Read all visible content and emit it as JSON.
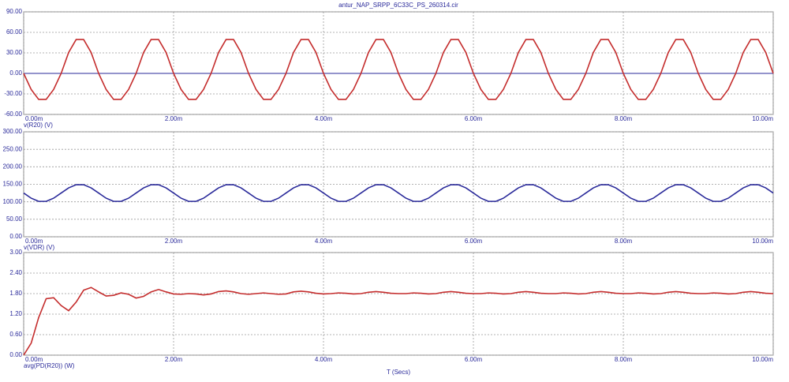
{
  "chart_data": [
    {
      "type": "line",
      "title": "antur_NAP_SRPP_6C33C_PS_260314.cir",
      "x": [
        0,
        0.0001,
        0.0002,
        0.0003,
        0.0004,
        0.0005,
        0.0006,
        0.0007,
        0.0008,
        0.0009,
        0.001,
        0.0011,
        0.0012,
        0.0013,
        0.0014,
        0.0015,
        0.0016,
        0.0017,
        0.0018,
        0.0019,
        0.002,
        0.0021,
        0.0022,
        0.0023,
        0.0024,
        0.0025,
        0.0026,
        0.0027,
        0.0028,
        0.0029,
        0.003,
        0.0031,
        0.0032,
        0.0033,
        0.0034,
        0.0035,
        0.0036,
        0.0037,
        0.0038,
        0.0039,
        0.004,
        0.0041,
        0.0042,
        0.0043,
        0.0044,
        0.0045,
        0.0046,
        0.0047,
        0.0048,
        0.0049,
        0.005,
        0.0051,
        0.0052,
        0.0053,
        0.0054,
        0.0055,
        0.0056,
        0.0057,
        0.0058,
        0.0059,
        0.006,
        0.0061,
        0.0062,
        0.0063,
        0.0064,
        0.0065,
        0.0066,
        0.0067,
        0.0068,
        0.0069,
        0.007,
        0.0071,
        0.0072,
        0.0073,
        0.0074,
        0.0075,
        0.0076,
        0.0077,
        0.0078,
        0.0079,
        0.008,
        0.0081,
        0.0082,
        0.0083,
        0.0084,
        0.0085,
        0.0086,
        0.0087,
        0.0088,
        0.0089,
        0.009,
        0.0091,
        0.0092,
        0.0093,
        0.0094,
        0.0095,
        0.0096,
        0.0097,
        0.0098,
        0.0099,
        0.01
      ],
      "series": [
        {
          "name": "v(R20) (V)",
          "color": "#c42c2c",
          "values": [
            0,
            -23.5,
            -38,
            -38,
            -23.5,
            0,
            30.6,
            49.5,
            49.5,
            30.6,
            0,
            -23.5,
            -38,
            -38,
            -23.5,
            0,
            30.6,
            49.5,
            49.5,
            30.6,
            0,
            -23.5,
            -38,
            -38,
            -23.5,
            0,
            30.6,
            49.5,
            49.5,
            30.6,
            0,
            -23.5,
            -38,
            -38,
            -23.5,
            0,
            30.6,
            49.5,
            49.5,
            30.6,
            0,
            -23.5,
            -38,
            -38,
            -23.5,
            0,
            30.6,
            49.5,
            49.5,
            30.6,
            0,
            -23.5,
            -38,
            -38,
            -23.5,
            0,
            30.6,
            49.5,
            49.5,
            30.6,
            0,
            -23.5,
            -38,
            -38,
            -23.5,
            0,
            30.6,
            49.5,
            49.5,
            30.6,
            0,
            -23.5,
            -38,
            -38,
            -23.5,
            0,
            30.6,
            49.5,
            49.5,
            30.6,
            0,
            -23.5,
            -38,
            -38,
            -23.5,
            0,
            30.6,
            49.5,
            49.5,
            30.6,
            0,
            -23.5,
            -38,
            -38,
            -23.5,
            0,
            30.6,
            49.5,
            49.5,
            30.6,
            0
          ]
        }
      ],
      "xlim": [
        0,
        0.01
      ],
      "xticks": [
        {
          "value": 0,
          "label": "0.00m"
        },
        {
          "value": 0.002,
          "label": "2.00m"
        },
        {
          "value": 0.004,
          "label": "4.00m"
        },
        {
          "value": 0.006,
          "label": "6.00m"
        },
        {
          "value": 0.008,
          "label": "8.00m"
        },
        {
          "value": 0.01,
          "label": "10.00m"
        }
      ],
      "ylim": [
        -60,
        90
      ],
      "yticks": [
        {
          "value": -60,
          "label": "-60.00"
        },
        {
          "value": -30,
          "label": "-30.00"
        },
        {
          "value": 0,
          "label": "0.00"
        },
        {
          "value": 30,
          "label": "30.00"
        },
        {
          "value": 60,
          "label": "60.00"
        },
        {
          "value": 90,
          "label": "90.00"
        }
      ],
      "grid": true
    },
    {
      "type": "line",
      "x": [
        0,
        0.0001,
        0.0002,
        0.0003,
        0.0004,
        0.0005,
        0.0006,
        0.0007,
        0.0008,
        0.0009,
        0.001,
        0.0011,
        0.0012,
        0.0013,
        0.0014,
        0.0015,
        0.0016,
        0.0017,
        0.0018,
        0.0019,
        0.002,
        0.0021,
        0.0022,
        0.0023,
        0.0024,
        0.0025,
        0.0026,
        0.0027,
        0.0028,
        0.0029,
        0.003,
        0.0031,
        0.0032,
        0.0033,
        0.0034,
        0.0035,
        0.0036,
        0.0037,
        0.0038,
        0.0039,
        0.004,
        0.0041,
        0.0042,
        0.0043,
        0.0044,
        0.0045,
        0.0046,
        0.0047,
        0.0048,
        0.0049,
        0.005,
        0.0051,
        0.0052,
        0.0053,
        0.0054,
        0.0055,
        0.0056,
        0.0057,
        0.0058,
        0.0059,
        0.006,
        0.0061,
        0.0062,
        0.0063,
        0.0064,
        0.0065,
        0.0066,
        0.0067,
        0.0068,
        0.0069,
        0.007,
        0.0071,
        0.0072,
        0.0073,
        0.0074,
        0.0075,
        0.0076,
        0.0077,
        0.0078,
        0.0079,
        0.008,
        0.0081,
        0.0082,
        0.0083,
        0.0084,
        0.0085,
        0.0086,
        0.0087,
        0.0088,
        0.0089,
        0.009,
        0.0091,
        0.0092,
        0.0093,
        0.0094,
        0.0095,
        0.0096,
        0.0097,
        0.0098,
        0.0099,
        0.01
      ],
      "series": [
        {
          "name": "v(VDR) (V)",
          "color": "#2a2a9a",
          "values": [
            125,
            110.3,
            101.2,
            101.2,
            110.3,
            125,
            139.7,
            148.8,
            148.8,
            139.7,
            125,
            110.3,
            101.2,
            101.2,
            110.3,
            125,
            139.7,
            148.8,
            148.8,
            139.7,
            125,
            110.3,
            101.2,
            101.2,
            110.3,
            125,
            139.7,
            148.8,
            148.8,
            139.7,
            125,
            110.3,
            101.2,
            101.2,
            110.3,
            125,
            139.7,
            148.8,
            148.8,
            139.7,
            125,
            110.3,
            101.2,
            101.2,
            110.3,
            125,
            139.7,
            148.8,
            148.8,
            139.7,
            125,
            110.3,
            101.2,
            101.2,
            110.3,
            125,
            139.7,
            148.8,
            148.8,
            139.7,
            125,
            110.3,
            101.2,
            101.2,
            110.3,
            125,
            139.7,
            148.8,
            148.8,
            139.7,
            125,
            110.3,
            101.2,
            101.2,
            110.3,
            125,
            139.7,
            148.8,
            148.8,
            139.7,
            125,
            110.3,
            101.2,
            101.2,
            110.3,
            125,
            139.7,
            148.8,
            148.8,
            139.7,
            125,
            110.3,
            101.2,
            101.2,
            110.3,
            125,
            139.7,
            148.8,
            148.8,
            139.7,
            125
          ]
        }
      ],
      "xlim": [
        0,
        0.01
      ],
      "xticks": [
        {
          "value": 0,
          "label": "0.00m"
        },
        {
          "value": 0.002,
          "label": "2.00m"
        },
        {
          "value": 0.004,
          "label": "4.00m"
        },
        {
          "value": 0.006,
          "label": "6.00m"
        },
        {
          "value": 0.008,
          "label": "8.00m"
        },
        {
          "value": 0.01,
          "label": "10.00m"
        }
      ],
      "ylim": [
        0,
        300
      ],
      "yticks": [
        {
          "value": 0,
          "label": "0.00"
        },
        {
          "value": 50,
          "label": "50.00"
        },
        {
          "value": 100,
          "label": "100.00"
        },
        {
          "value": 150,
          "label": "150.00"
        },
        {
          "value": 200,
          "label": "200.00"
        },
        {
          "value": 250,
          "label": "250.00"
        },
        {
          "value": 300,
          "label": "300.00"
        }
      ],
      "grid": true
    },
    {
      "type": "line",
      "x_label": "T (Secs)",
      "x": [
        0,
        0.0001,
        0.0002,
        0.0003,
        0.0004,
        0.0005,
        0.0006,
        0.0007,
        0.0008,
        0.0009,
        0.001,
        0.0011,
        0.0012,
        0.0013,
        0.0014,
        0.0015,
        0.0016,
        0.0017,
        0.0018,
        0.0019,
        0.002,
        0.0021,
        0.0022,
        0.0023,
        0.0024,
        0.0025,
        0.0026,
        0.0027,
        0.0028,
        0.0029,
        0.003,
        0.0031,
        0.0032,
        0.0033,
        0.0034,
        0.0035,
        0.0036,
        0.0037,
        0.0038,
        0.0039,
        0.004,
        0.0041,
        0.0042,
        0.0043,
        0.0044,
        0.0045,
        0.0046,
        0.0047,
        0.0048,
        0.0049,
        0.005,
        0.0051,
        0.0052,
        0.0053,
        0.0054,
        0.0055,
        0.0056,
        0.0057,
        0.0058,
        0.0059,
        0.006,
        0.0061,
        0.0062,
        0.0063,
        0.0064,
        0.0065,
        0.0066,
        0.0067,
        0.0068,
        0.0069,
        0.007,
        0.0071,
        0.0072,
        0.0073,
        0.0074,
        0.0075,
        0.0076,
        0.0077,
        0.0078,
        0.0079,
        0.008,
        0.0081,
        0.0082,
        0.0083,
        0.0084,
        0.0085,
        0.0086,
        0.0087,
        0.0088,
        0.0089,
        0.009,
        0.0091,
        0.0092,
        0.0093,
        0.0094,
        0.0095,
        0.0096,
        0.0097,
        0.0098,
        0.0099,
        0.01
      ],
      "series": [
        {
          "name": "avg(PD(R20)) (W)",
          "color": "#c42c2c",
          "values": [
            0,
            0.35,
            1.1,
            1.65,
            1.68,
            1.45,
            1.3,
            1.55,
            1.9,
            1.98,
            1.85,
            1.73,
            1.75,
            1.82,
            1.78,
            1.67,
            1.72,
            1.85,
            1.92,
            1.85,
            1.79,
            1.78,
            1.8,
            1.79,
            1.76,
            1.79,
            1.86,
            1.88,
            1.85,
            1.8,
            1.78,
            1.8,
            1.82,
            1.8,
            1.78,
            1.79,
            1.85,
            1.87,
            1.85,
            1.81,
            1.79,
            1.8,
            1.82,
            1.81,
            1.79,
            1.8,
            1.84,
            1.86,
            1.84,
            1.81,
            1.8,
            1.8,
            1.82,
            1.81,
            1.79,
            1.8,
            1.84,
            1.86,
            1.84,
            1.81,
            1.8,
            1.8,
            1.82,
            1.81,
            1.79,
            1.8,
            1.84,
            1.86,
            1.84,
            1.81,
            1.8,
            1.8,
            1.82,
            1.81,
            1.79,
            1.8,
            1.84,
            1.86,
            1.84,
            1.81,
            1.8,
            1.8,
            1.82,
            1.81,
            1.79,
            1.8,
            1.84,
            1.86,
            1.84,
            1.81,
            1.8,
            1.8,
            1.82,
            1.81,
            1.79,
            1.8,
            1.84,
            1.86,
            1.84,
            1.81,
            1.8
          ]
        }
      ],
      "xlim": [
        0,
        0.01
      ],
      "xticks": [
        {
          "value": 0,
          "label": "0.00m"
        },
        {
          "value": 0.002,
          "label": "2.00m"
        },
        {
          "value": 0.004,
          "label": "4.00m"
        },
        {
          "value": 0.006,
          "label": "6.00m"
        },
        {
          "value": 0.008,
          "label": "8.00m"
        },
        {
          "value": 0.01,
          "label": "10.00m"
        }
      ],
      "ylim": [
        0,
        3
      ],
      "yticks": [
        {
          "value": 0,
          "label": "0.00"
        },
        {
          "value": 0.6,
          "label": "0.60"
        },
        {
          "value": 1.2,
          "label": "1.20"
        },
        {
          "value": 1.8,
          "label": "1.80"
        },
        {
          "value": 2.4,
          "label": "2.40"
        },
        {
          "value": 3,
          "label": "3.00"
        }
      ],
      "grid": true
    }
  ]
}
